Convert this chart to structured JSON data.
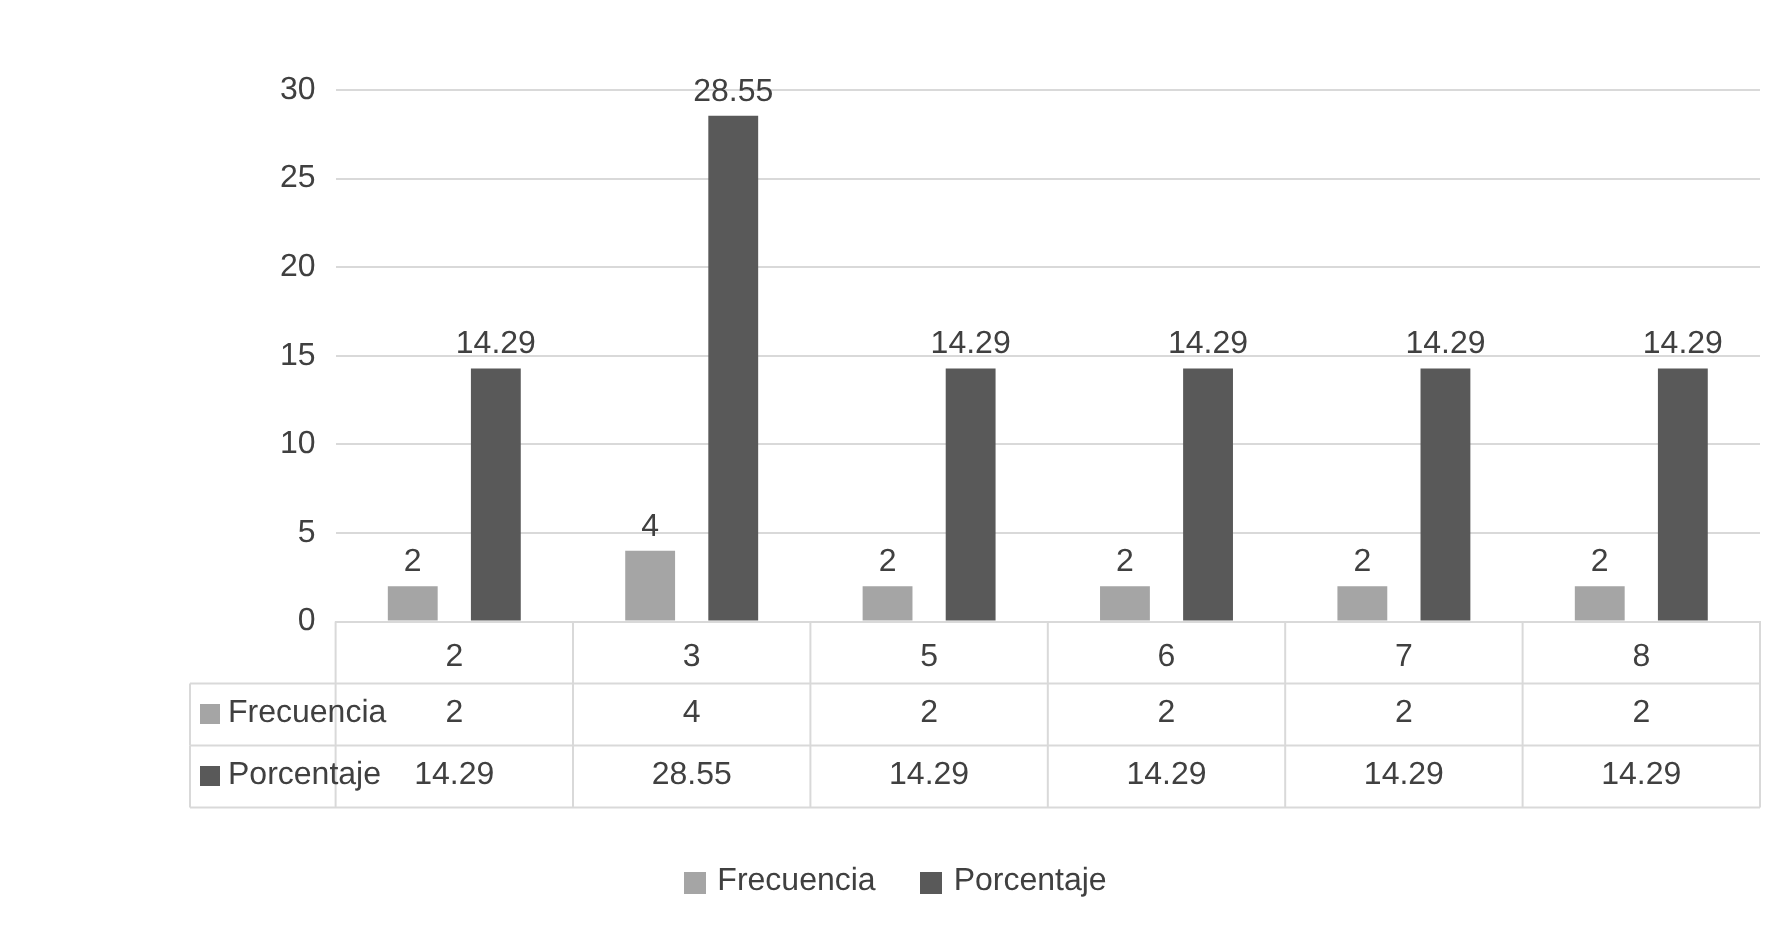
{
  "chart_data": {
    "type": "bar",
    "categories": [
      "2",
      "3",
      "5",
      "6",
      "7",
      "8"
    ],
    "series": [
      {
        "name": "Frecuencia",
        "color": "#a5a5a5",
        "values": [
          2,
          4,
          2,
          2,
          2,
          2
        ],
        "value_labels": [
          "2",
          "4",
          "2",
          "2",
          "2",
          "2"
        ]
      },
      {
        "name": "Porcentaje",
        "color": "#595959",
        "values": [
          14.29,
          28.55,
          14.29,
          14.29,
          14.29,
          14.29
        ],
        "value_labels": [
          "14.29",
          "28.55",
          "14.29",
          "14.29",
          "14.29",
          "14.29"
        ]
      }
    ],
    "ylim": [
      0,
      30
    ],
    "yticks": [
      0,
      5,
      10,
      15,
      20,
      25,
      30
    ],
    "annotations": [
      "2",
      "4",
      "2",
      "2",
      "2",
      "2",
      "14.29",
      "28.55",
      "14.29",
      "14.29",
      "14.29",
      "14.29"
    ],
    "grid": "y",
    "legend": "bottom",
    "data_labels": true
  }
}
